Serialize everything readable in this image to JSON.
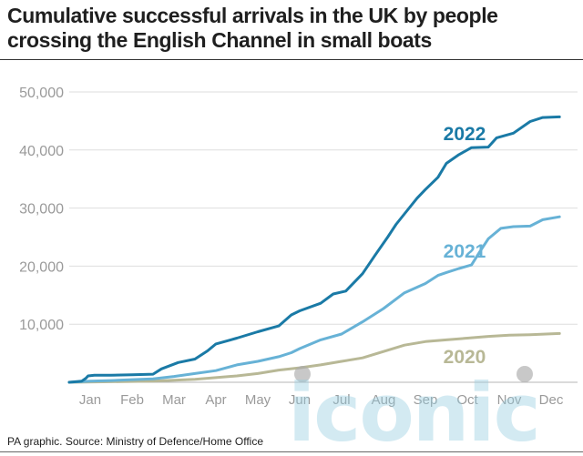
{
  "title": "Cumulative successful arrivals in the UK by people crossing the English Channel in small boats",
  "source": "PA graphic. Source: Ministry of Defence/Home Office",
  "watermark": "iconic",
  "chart_data": {
    "type": "line",
    "title": "Cumulative successful arrivals in the UK by people crossing the English Channel in small boats",
    "xlabel": "",
    "ylabel": "",
    "x_ticks": [
      "Jan",
      "Feb",
      "Mar",
      "Apr",
      "May",
      "Jun",
      "Jul",
      "Aug",
      "Sep",
      "Oct",
      "Nov",
      "Dec"
    ],
    "y_ticks": [
      "0",
      "10,000",
      "20,000",
      "30,000",
      "40,000",
      "50,000"
    ],
    "ylim": [
      0,
      50000
    ],
    "xlim": [
      0,
      12
    ],
    "grid": "horizontal",
    "legend": "inline labels",
    "series": [
      {
        "name": "2022",
        "color": "#1a7aa6",
        "points": [
          [
            0.0,
            0
          ],
          [
            0.3,
            200
          ],
          [
            0.4,
            700
          ],
          [
            0.45,
            1100
          ],
          [
            0.6,
            1200
          ],
          [
            1.0,
            1200
          ],
          [
            1.5,
            1300
          ],
          [
            2.0,
            1400
          ],
          [
            2.2,
            2300
          ],
          [
            2.6,
            3400
          ],
          [
            3.0,
            4000
          ],
          [
            3.3,
            5400
          ],
          [
            3.5,
            6600
          ],
          [
            4.0,
            7600
          ],
          [
            4.5,
            8700
          ],
          [
            5.0,
            9700
          ],
          [
            5.3,
            11600
          ],
          [
            5.5,
            12300
          ],
          [
            6.0,
            13600
          ],
          [
            6.3,
            15200
          ],
          [
            6.6,
            15700
          ],
          [
            7.0,
            18700
          ],
          [
            7.3,
            21900
          ],
          [
            7.6,
            25000
          ],
          [
            7.8,
            27200
          ],
          [
            8.0,
            29000
          ],
          [
            8.3,
            31700
          ],
          [
            8.5,
            33200
          ],
          [
            8.8,
            35300
          ],
          [
            9.0,
            37700
          ],
          [
            9.3,
            39200
          ],
          [
            9.6,
            40400
          ],
          [
            10.0,
            40500
          ],
          [
            10.2,
            42100
          ],
          [
            10.6,
            42900
          ],
          [
            11.0,
            44900
          ],
          [
            11.3,
            45600
          ],
          [
            11.7,
            45700
          ]
        ]
      },
      {
        "name": "2021",
        "color": "#67b2d6",
        "points": [
          [
            0.0,
            0
          ],
          [
            0.5,
            200
          ],
          [
            1.0,
            300
          ],
          [
            1.5,
            450
          ],
          [
            2.0,
            600
          ],
          [
            2.5,
            1000
          ],
          [
            3.0,
            1500
          ],
          [
            3.5,
            2000
          ],
          [
            4.0,
            3000
          ],
          [
            4.5,
            3600
          ],
          [
            5.0,
            4400
          ],
          [
            5.3,
            5100
          ],
          [
            5.5,
            5800
          ],
          [
            6.0,
            7300
          ],
          [
            6.5,
            8300
          ],
          [
            7.0,
            10400
          ],
          [
            7.5,
            12700
          ],
          [
            8.0,
            15400
          ],
          [
            8.5,
            17000
          ],
          [
            8.8,
            18400
          ],
          [
            9.0,
            18900
          ],
          [
            9.3,
            19600
          ],
          [
            9.6,
            20200
          ],
          [
            9.8,
            22500
          ],
          [
            10.0,
            24700
          ],
          [
            10.3,
            26500
          ],
          [
            10.6,
            26800
          ],
          [
            11.0,
            26900
          ],
          [
            11.3,
            28000
          ],
          [
            11.7,
            28500
          ]
        ]
      },
      {
        "name": "2020",
        "color": "#b8b896",
        "points": [
          [
            0.0,
            0
          ],
          [
            1.0,
            100
          ],
          [
            2.0,
            200
          ],
          [
            3.0,
            500
          ],
          [
            4.0,
            1100
          ],
          [
            4.5,
            1500
          ],
          [
            5.0,
            2100
          ],
          [
            5.5,
            2500
          ],
          [
            6.0,
            3000
          ],
          [
            6.5,
            3600
          ],
          [
            7.0,
            4200
          ],
          [
            7.5,
            5300
          ],
          [
            8.0,
            6400
          ],
          [
            8.5,
            7000
          ],
          [
            9.0,
            7300
          ],
          [
            9.5,
            7600
          ],
          [
            10.0,
            7900
          ],
          [
            10.5,
            8100
          ],
          [
            11.0,
            8200
          ],
          [
            11.7,
            8400
          ]
        ]
      }
    ]
  }
}
